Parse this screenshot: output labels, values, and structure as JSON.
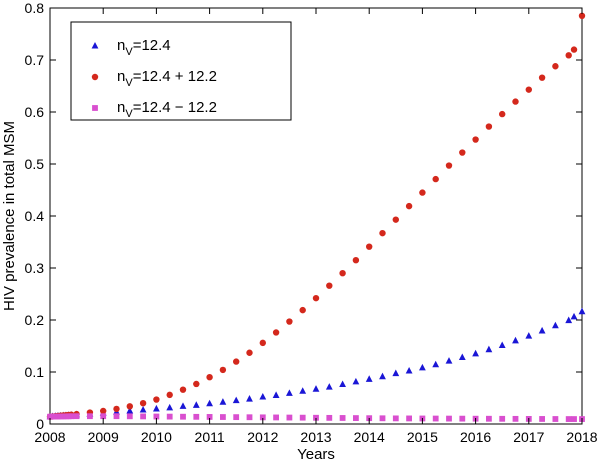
{
  "chart_data": {
    "type": "scatter",
    "title": "",
    "xlabel": "Years",
    "ylabel": "HIV prevalence in total MSM",
    "xlim": [
      2008,
      2018
    ],
    "ylim": [
      0,
      0.8
    ],
    "xticks": [
      2008,
      2009,
      2010,
      2011,
      2012,
      2013,
      2014,
      2015,
      2016,
      2017,
      2018
    ],
    "yticks": [
      0,
      0.1,
      0.2,
      0.3,
      0.4,
      0.5,
      0.6,
      0.7,
      0.8
    ],
    "xtick_labels": [
      "2008",
      "2009",
      "2010",
      "2011",
      "2012",
      "2013",
      "2014",
      "2015",
      "2016",
      "2017",
      "2018"
    ],
    "ytick_labels": [
      "0",
      "0.1",
      "0.2",
      "0.3",
      "0.4",
      "0.5",
      "0.6",
      "0.7",
      "0.8"
    ],
    "grid": false,
    "legend_position": "top-left",
    "series": [
      {
        "legend_main": "n",
        "legend_sub": "V",
        "legend_rest": "=12.4",
        "marker": "triangle",
        "color": "#1a16d6",
        "x": [
          2008.0,
          2008.05,
          2008.1,
          2008.15,
          2008.2,
          2008.25,
          2008.3,
          2008.35,
          2008.4,
          2008.5,
          2008.75,
          2009.0,
          2009.25,
          2009.5,
          2009.75,
          2010.0,
          2010.25,
          2010.5,
          2010.75,
          2011.0,
          2011.25,
          2011.5,
          2011.75,
          2012.0,
          2012.25,
          2012.5,
          2012.75,
          2013.0,
          2013.25,
          2013.5,
          2013.75,
          2014.0,
          2014.25,
          2014.5,
          2014.75,
          2015.0,
          2015.25,
          2015.5,
          2015.75,
          2016.0,
          2016.25,
          2016.5,
          2016.75,
          2017.0,
          2017.25,
          2017.5,
          2017.75,
          2017.85,
          2018.0
        ],
        "y": [
          0.014,
          0.0145,
          0.015,
          0.0153,
          0.0156,
          0.016,
          0.0163,
          0.0166,
          0.017,
          0.018,
          0.019,
          0.021,
          0.023,
          0.025,
          0.027,
          0.029,
          0.031,
          0.034,
          0.036,
          0.039,
          0.042,
          0.045,
          0.048,
          0.052,
          0.055,
          0.059,
          0.063,
          0.067,
          0.071,
          0.076,
          0.081,
          0.086,
          0.091,
          0.097,
          0.102,
          0.108,
          0.114,
          0.121,
          0.128,
          0.135,
          0.143,
          0.151,
          0.16,
          0.169,
          0.179,
          0.189,
          0.199,
          0.206,
          0.216
        ]
      },
      {
        "legend_main": "n",
        "legend_sub": "V",
        "legend_rest": "=12.4 + 12.2",
        "marker": "circle",
        "color": "#d4281c",
        "x": [
          2008.0,
          2008.05,
          2008.1,
          2008.15,
          2008.2,
          2008.25,
          2008.3,
          2008.35,
          2008.4,
          2008.5,
          2008.75,
          2009.0,
          2009.25,
          2009.5,
          2009.75,
          2010.0,
          2010.25,
          2010.5,
          2010.75,
          2011.0,
          2011.25,
          2011.5,
          2011.75,
          2012.0,
          2012.25,
          2012.5,
          2012.75,
          2013.0,
          2013.25,
          2013.5,
          2013.75,
          2014.0,
          2014.25,
          2014.5,
          2014.75,
          2015.0,
          2015.25,
          2015.5,
          2015.75,
          2016.0,
          2016.25,
          2016.5,
          2016.75,
          2017.0,
          2017.25,
          2017.5,
          2017.75,
          2017.85,
          2018.0
        ],
        "y": [
          0.014,
          0.0145,
          0.015,
          0.0155,
          0.016,
          0.0165,
          0.017,
          0.0175,
          0.018,
          0.019,
          0.022,
          0.025,
          0.029,
          0.034,
          0.04,
          0.047,
          0.056,
          0.066,
          0.077,
          0.09,
          0.104,
          0.12,
          0.137,
          0.156,
          0.176,
          0.197,
          0.219,
          0.242,
          0.266,
          0.29,
          0.315,
          0.341,
          0.367,
          0.393,
          0.419,
          0.445,
          0.471,
          0.497,
          0.522,
          0.547,
          0.572,
          0.596,
          0.62,
          0.643,
          0.666,
          0.688,
          0.709,
          0.72,
          0.785
        ]
      },
      {
        "legend_main": "n",
        "legend_sub": "V",
        "legend_rest": "=12.4 − 12.2",
        "marker": "square",
        "color": "#d94fcf",
        "x": [
          2008.0,
          2008.05,
          2008.1,
          2008.15,
          2008.2,
          2008.25,
          2008.3,
          2008.35,
          2008.4,
          2008.5,
          2008.75,
          2009.0,
          2009.25,
          2009.5,
          2009.75,
          2010.0,
          2010.25,
          2010.5,
          2010.75,
          2011.0,
          2011.25,
          2011.5,
          2011.75,
          2012.0,
          2012.25,
          2012.5,
          2012.75,
          2013.0,
          2013.25,
          2013.5,
          2013.75,
          2014.0,
          2014.25,
          2014.5,
          2014.75,
          2015.0,
          2015.25,
          2015.5,
          2015.75,
          2016.0,
          2016.25,
          2016.5,
          2016.75,
          2017.0,
          2017.25,
          2017.5,
          2017.75,
          2017.85,
          2018.0
        ],
        "y": [
          0.014,
          0.0142,
          0.0143,
          0.0144,
          0.0145,
          0.0146,
          0.0147,
          0.0148,
          0.0149,
          0.015,
          0.015,
          0.015,
          0.015,
          0.0148,
          0.0146,
          0.0144,
          0.0142,
          0.014,
          0.0138,
          0.0136,
          0.0134,
          0.0132,
          0.013,
          0.0128,
          0.0126,
          0.0124,
          0.0122,
          0.012,
          0.0118,
          0.0116,
          0.0114,
          0.0112,
          0.011,
          0.0108,
          0.0107,
          0.0106,
          0.0105,
          0.0104,
          0.0103,
          0.0102,
          0.0101,
          0.01,
          0.0099,
          0.0098,
          0.0097,
          0.0096,
          0.0095,
          0.0095,
          0.0095
        ]
      }
    ]
  }
}
